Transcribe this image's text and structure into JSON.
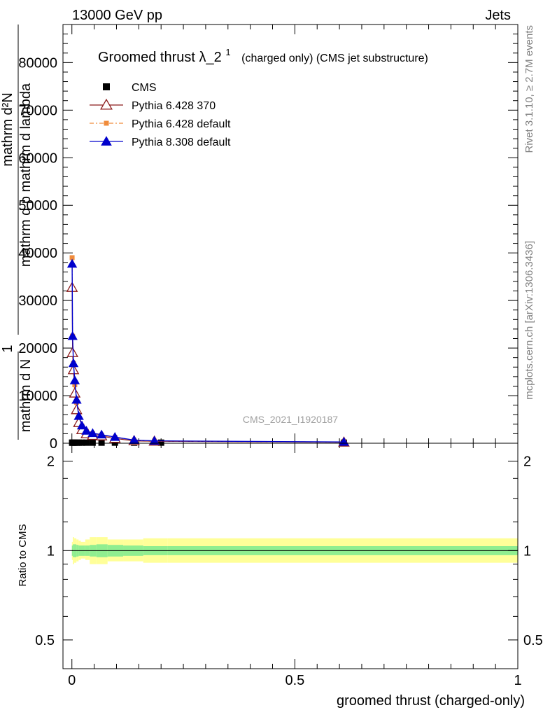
{
  "header": {
    "left": "13000 GeV pp",
    "right": "Jets"
  },
  "side_labels": {
    "rivet": "Rivet 3.1.10, ≥ 2.7M events",
    "mcplots": "mcplots.cern.ch [arXiv:1306.3436]"
  },
  "watermark": "CMS_2021_I1920187",
  "chart_data": [
    {
      "type": "line",
      "title_main": "Groomed thrust",
      "title_symbol": "λ_2",
      "title_sup": "1",
      "title_suffix": "(charged only) (CMS jet substructure)",
      "ylabel_numerator": "mathrm d²N",
      "ylabel_denominator": "mathrm d p mathrm d lambda",
      "ylabel_prefix_num": "1",
      "ylabel_prefix_den": "mathrm d N",
      "xlabel": "groomed thrust (charged-only)",
      "xlim": [
        -0.02,
        1.0
      ],
      "ylim": [
        0,
        88000
      ],
      "y_ticks": [
        0,
        10000,
        20000,
        30000,
        40000,
        50000,
        60000,
        70000,
        80000
      ],
      "y_tick_labels": [
        "0",
        "10000",
        "20000",
        "30000",
        "40000",
        "50000",
        "60000",
        "70000",
        "80000"
      ],
      "x_ticks": [
        0,
        0.5,
        1
      ],
      "x_tick_labels": [
        "0",
        "0.5",
        "1"
      ],
      "legend": {
        "placement": "top-left",
        "entries": [
          "CMS",
          "Pythia 6.428 370",
          "Pythia 6.428 default",
          "Pythia 8.308 default"
        ]
      },
      "series": [
        {
          "name": "CMS",
          "color": "#000000",
          "marker": "square",
          "x": [
            0.0005,
            0.0015,
            0.0035,
            0.0065,
            0.0105,
            0.0155,
            0.0225,
            0.0325,
            0.0465,
            0.0665,
            0.0965,
            0.1395,
            0.2,
            0.61
          ],
          "y": [
            120,
            120,
            120,
            120,
            120,
            120,
            120,
            120,
            120,
            120,
            120,
            120,
            120,
            120
          ]
        },
        {
          "name": "Pythia 6.428 370",
          "color": "#8b1a1a",
          "marker": "open-triangle",
          "x": [
            0.0005,
            0.0015,
            0.0035,
            0.0065,
            0.0105,
            0.0155,
            0.0225,
            0.0325,
            0.0465,
            0.0665,
            0.0965,
            0.1395,
            0.185,
            0.61
          ],
          "y": [
            32700,
            19000,
            15400,
            10500,
            7000,
            4300,
            2800,
            1950,
            1600,
            1500,
            1000,
            500,
            400,
            200
          ]
        },
        {
          "name": "Pythia 6.428 default",
          "color": "#f08c3c",
          "marker": "square",
          "x": [
            0.0005,
            0.0015,
            0.0035,
            0.0065,
            0.0105,
            0.0155,
            0.0225,
            0.0325,
            0.0465,
            0.0665,
            0.0965,
            0.1395,
            0.185,
            0.61
          ],
          "y": [
            39000,
            22500,
            16800,
            12300,
            8600,
            5500,
            3600,
            2500,
            2000,
            1700,
            1200,
            600,
            450,
            250
          ]
        },
        {
          "name": "Pythia 8.308 default",
          "color": "#0000cc",
          "marker": "triangle",
          "x": [
            0.0005,
            0.0015,
            0.0035,
            0.0065,
            0.0105,
            0.0155,
            0.0225,
            0.0325,
            0.0465,
            0.0665,
            0.0965,
            0.1395,
            0.185,
            0.61
          ],
          "y": [
            37700,
            22500,
            16800,
            13200,
            9100,
            5700,
            3700,
            2600,
            2100,
            1800,
            1300,
            650,
            500,
            270
          ]
        }
      ]
    },
    {
      "type": "area",
      "ylabel": "Ratio to CMS",
      "y_scale": "log",
      "ylim": [
        0.4,
        2.3
      ],
      "y_ticks": [
        0.5,
        1,
        2
      ],
      "y_tick_labels": [
        "0.5",
        "1",
        "2"
      ],
      "xlim": [
        -0.02,
        1.0
      ],
      "bands": {
        "edges": [
          0,
          0.002,
          0.005,
          0.01,
          0.015,
          0.02,
          0.03,
          0.04,
          0.055,
          0.08,
          0.115,
          0.16,
          0.215,
          1.0
        ],
        "inner_colors": "#90ee90",
        "outer_colors": "#ffff99",
        "inner_lo": [
          0.96,
          0.95,
          0.95,
          0.955,
          0.96,
          0.96,
          0.96,
          0.955,
          0.95,
          0.955,
          0.96,
          0.965,
          0.965
        ],
        "inner_hi": [
          1.04,
          1.05,
          1.05,
          1.045,
          1.04,
          1.04,
          1.04,
          1.045,
          1.05,
          1.045,
          1.04,
          1.035,
          1.035
        ],
        "outer_lo": [
          0.93,
          0.9,
          0.91,
          0.92,
          0.93,
          0.94,
          0.93,
          0.9,
          0.9,
          0.92,
          0.92,
          0.91,
          0.91
        ],
        "outer_hi": [
          1.07,
          1.11,
          1.1,
          1.09,
          1.08,
          1.07,
          1.09,
          1.11,
          1.11,
          1.09,
          1.09,
          1.1,
          1.1
        ]
      },
      "reference_line": 1
    }
  ]
}
